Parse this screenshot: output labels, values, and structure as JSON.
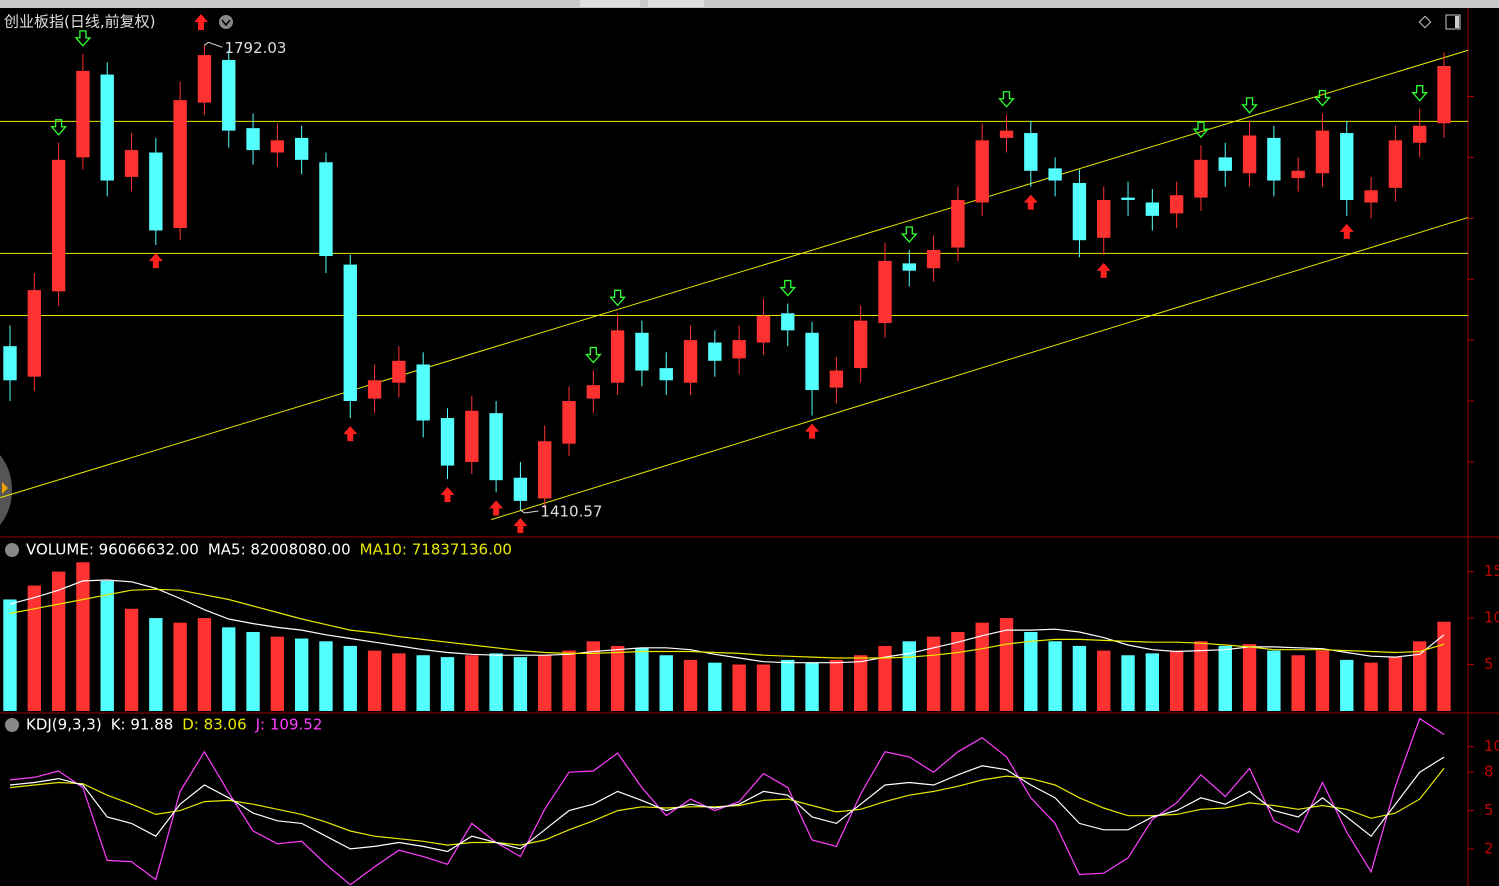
{
  "chart_data": [
    {
      "type": "candlestick",
      "title": "创业板指(日线,前复权)",
      "up_color": "#ff3232",
      "down_color": "#54ffff",
      "open": [
        1545,
        1520,
        1590,
        1700,
        1768,
        1684,
        1704,
        1642,
        1745,
        1780,
        1724,
        1704,
        1716,
        1696,
        1612,
        1502,
        1515,
        1530,
        1486,
        1450,
        1490,
        1437,
        1420,
        1465,
        1502,
        1515,
        1556,
        1527,
        1515,
        1548,
        1535,
        1548,
        1572,
        1556,
        1511,
        1527,
        1564,
        1613,
        1609,
        1626,
        1663,
        1716,
        1720,
        1691,
        1679,
        1634,
        1667,
        1663,
        1654,
        1667,
        1700,
        1687,
        1716,
        1683,
        1687,
        1720,
        1663,
        1675,
        1712,
        1728
      ],
      "high": [
        1562,
        1605,
        1712,
        1785,
        1778,
        1720,
        1716,
        1762,
        1792.03,
        1788,
        1736,
        1728,
        1726,
        1704,
        1620,
        1530,
        1545,
        1540,
        1494,
        1504,
        1500,
        1450,
        1480,
        1512,
        1525,
        1572,
        1566,
        1540,
        1562,
        1558,
        1562,
        1584,
        1580,
        1565,
        1536,
        1578,
        1630,
        1624,
        1636,
        1676,
        1728,
        1735,
        1730,
        1700,
        1690,
        1676,
        1680,
        1674,
        1680,
        1710,
        1712,
        1730,
        1726,
        1700,
        1736,
        1730,
        1684,
        1726,
        1740,
        1786
      ],
      "low": [
        1500,
        1508,
        1578,
        1690,
        1668,
        1672,
        1628,
        1632,
        1735,
        1708,
        1694,
        1692,
        1686,
        1605,
        1486,
        1490,
        1503,
        1470,
        1436,
        1440,
        1425,
        1410.57,
        1412,
        1455,
        1490,
        1505,
        1512,
        1505,
        1505,
        1520,
        1522,
        1538,
        1545,
        1488,
        1498,
        1515,
        1552,
        1594,
        1598,
        1615,
        1652,
        1704,
        1676,
        1668,
        1618,
        1620,
        1652,
        1640,
        1642,
        1656,
        1676,
        1676,
        1668,
        1672,
        1676,
        1652,
        1650,
        1664,
        1700,
        1716
      ],
      "close": [
        1517,
        1591,
        1698,
        1771,
        1681,
        1706,
        1640,
        1747,
        1784,
        1722,
        1706,
        1714,
        1698,
        1619,
        1500,
        1517,
        1533,
        1484,
        1447,
        1492,
        1435,
        1418,
        1467,
        1500,
        1513,
        1558,
        1525,
        1517,
        1550,
        1533,
        1550,
        1570,
        1558,
        1509,
        1525,
        1566,
        1615,
        1607,
        1624,
        1665,
        1714,
        1722,
        1689,
        1681,
        1632,
        1665,
        1665,
        1652,
        1669,
        1698,
        1689,
        1718,
        1681,
        1689,
        1722,
        1665,
        1673,
        1714,
        1726,
        1775
      ],
      "ylim": [
        1390,
        1821
      ],
      "yticks": [
        1450,
        1500,
        1550,
        1600,
        1650,
        1700,
        1750
      ],
      "hlines": [
        1729.6,
        1621.2,
        1570.2
      ],
      "line_color": "#e8e800",
      "trendlines": [
        {
          "x": [
            -0.4,
            60
          ],
          "y": [
            1420.7,
            1788
          ]
        },
        {
          "x": [
            19.8,
            60
          ],
          "y": [
            1402.6,
            1650.7
          ]
        }
      ],
      "buy_signals": [
        6,
        14,
        18,
        20,
        21,
        33,
        42,
        45,
        55
      ],
      "sell_signals": [
        2,
        3,
        24,
        25,
        32,
        37,
        41,
        49,
        51,
        54,
        58
      ]
    },
    {
      "type": "volume",
      "values": [
        120000000,
        135000000,
        150000000,
        160000000,
        140000000,
        110000000,
        100000000,
        95000000,
        100000000,
        90000000,
        85000000,
        80000000,
        78000000,
        75000000,
        70000000,
        65000000,
        62000000,
        60000000,
        58000000,
        60000000,
        62000000,
        58000000,
        60000000,
        65000000,
        75000000,
        70000000,
        68000000,
        60000000,
        55000000,
        52000000,
        50000000,
        50000000,
        55000000,
        52000000,
        55000000,
        60000000,
        70000000,
        75000000,
        80000000,
        85000000,
        95000000,
        100000000,
        85000000,
        75000000,
        70000000,
        65000000,
        60000000,
        62000000,
        65000000,
        75000000,
        70000000,
        72000000,
        65000000,
        60000000,
        65000000,
        55000000,
        52000000,
        58000000,
        75000000,
        96066632
      ],
      "series": [
        {
          "name": "MA5",
          "color": "#ffffff",
          "values": [
            115000000,
            122000000,
            130000000,
            140000000,
            141000000,
            139000000,
            132000000,
            121000000,
            109000000,
            99000000,
            94000000,
            90000000,
            87000000,
            82000000,
            78000000,
            74000000,
            70000000,
            66000000,
            63000000,
            61000000,
            60000000,
            60000000,
            60000000,
            61000000,
            64000000,
            66000000,
            68000000,
            68000000,
            66000000,
            61000000,
            57000000,
            53000000,
            52000000,
            52000000,
            52000000,
            53000000,
            58000000,
            62000000,
            68000000,
            74000000,
            81000000,
            87000000,
            87000000,
            88000000,
            85000000,
            79000000,
            71000000,
            66000000,
            64000000,
            65000000,
            66000000,
            69000000,
            69000000,
            68000000,
            67000000,
            63000000,
            59000000,
            58000000,
            61000000,
            82008080
          ]
        },
        {
          "name": "MA10",
          "color": "#e8e800",
          "values": [
            105000000,
            110000000,
            115000000,
            120000000,
            125000000,
            130000000,
            131000000,
            130000000,
            125000000,
            120000000,
            113000000,
            106000000,
            99000000,
            93000000,
            87000000,
            84000000,
            80000000,
            77000000,
            74000000,
            71000000,
            68000000,
            65000000,
            63000000,
            62000000,
            62000000,
            63000000,
            64000000,
            64000000,
            64000000,
            63000000,
            62000000,
            60000000,
            59000000,
            58000000,
            57000000,
            57000000,
            57000000,
            58000000,
            60000000,
            63000000,
            67000000,
            72000000,
            75000000,
            77000000,
            77000000,
            76000000,
            75000000,
            74000000,
            74000000,
            73000000,
            71000000,
            69000000,
            66000000,
            66000000,
            66000000,
            65000000,
            64000000,
            63000000,
            64000000,
            71837136
          ]
        }
      ],
      "readout": [
        {
          "text": "VOLUME: 96066632.00",
          "color": "#ffffff"
        },
        {
          "text": "MA5: 82008080.00",
          "color": "#ffffff"
        },
        {
          "text": "MA10: 71837136.00",
          "color": "#e8e800"
        }
      ],
      "ylim": [
        0,
        184000000
      ],
      "yticks": [
        {
          "value": 150000000,
          "label": "15"
        },
        {
          "value": 100000000,
          "label": "10"
        },
        {
          "value": 50000000,
          "label": "5"
        }
      ]
    },
    {
      "type": "kdj",
      "series": [
        {
          "name": "K",
          "color": "#ffffff",
          "values": [
            70,
            72,
            75,
            70,
            45,
            40,
            30,
            55,
            70,
            60,
            48,
            42,
            40,
            30,
            20,
            22,
            25,
            22,
            18,
            30,
            25,
            20,
            35,
            50,
            55,
            65,
            58,
            50,
            55,
            52,
            55,
            65,
            62,
            45,
            40,
            55,
            70,
            72,
            70,
            78,
            85,
            82,
            70,
            60,
            40,
            35,
            35,
            45,
            50,
            60,
            55,
            65,
            50,
            45,
            60,
            45,
            30,
            55,
            80,
            91.88
          ]
        },
        {
          "name": "D",
          "color": "#e8e800",
          "values": [
            68,
            70,
            72,
            71,
            62,
            55,
            47,
            50,
            57,
            58,
            55,
            51,
            47,
            41,
            34,
            30,
            28,
            26,
            23,
            25,
            25,
            23,
            27,
            35,
            42,
            50,
            53,
            52,
            53,
            53,
            54,
            58,
            59,
            54,
            49,
            51,
            57,
            62,
            65,
            69,
            74,
            77,
            75,
            70,
            60,
            52,
            46,
            46,
            47,
            51,
            52,
            56,
            54,
            51,
            54,
            51,
            44,
            48,
            59,
            83.06
          ]
        },
        {
          "name": "J",
          "color": "#ff40ff",
          "values": [
            74,
            76,
            81,
            68,
            11,
            10,
            -4,
            65,
            96,
            64,
            34,
            24,
            26,
            8,
            -8,
            6,
            19,
            14,
            8,
            40,
            25,
            14,
            51,
            80,
            81,
            95,
            68,
            46,
            59,
            50,
            57,
            79,
            68,
            27,
            22,
            63,
            96,
            92,
            80,
            96,
            107,
            92,
            60,
            40,
            0,
            1,
            13,
            43,
            56,
            78,
            61,
            83,
            42,
            33,
            72,
            33,
            2,
            69,
            122,
            109.52
          ]
        }
      ],
      "readout": [
        {
          "text": "KDJ(9,3,3)",
          "color": "#ffffff"
        },
        {
          "text": "K: 91.88",
          "color": "#ffffff"
        },
        {
          "text": "D: 83.06",
          "color": "#e8e800"
        },
        {
          "text": "J: 109.52",
          "color": "#ff40ff"
        }
      ],
      "ylim": [
        -9,
        124
      ],
      "yticks": [
        {
          "value": 100,
          "label": "10"
        },
        {
          "value": 80,
          "label": "8"
        },
        {
          "value": 50,
          "label": "5"
        },
        {
          "value": 20,
          "label": "2"
        }
      ]
    }
  ]
}
